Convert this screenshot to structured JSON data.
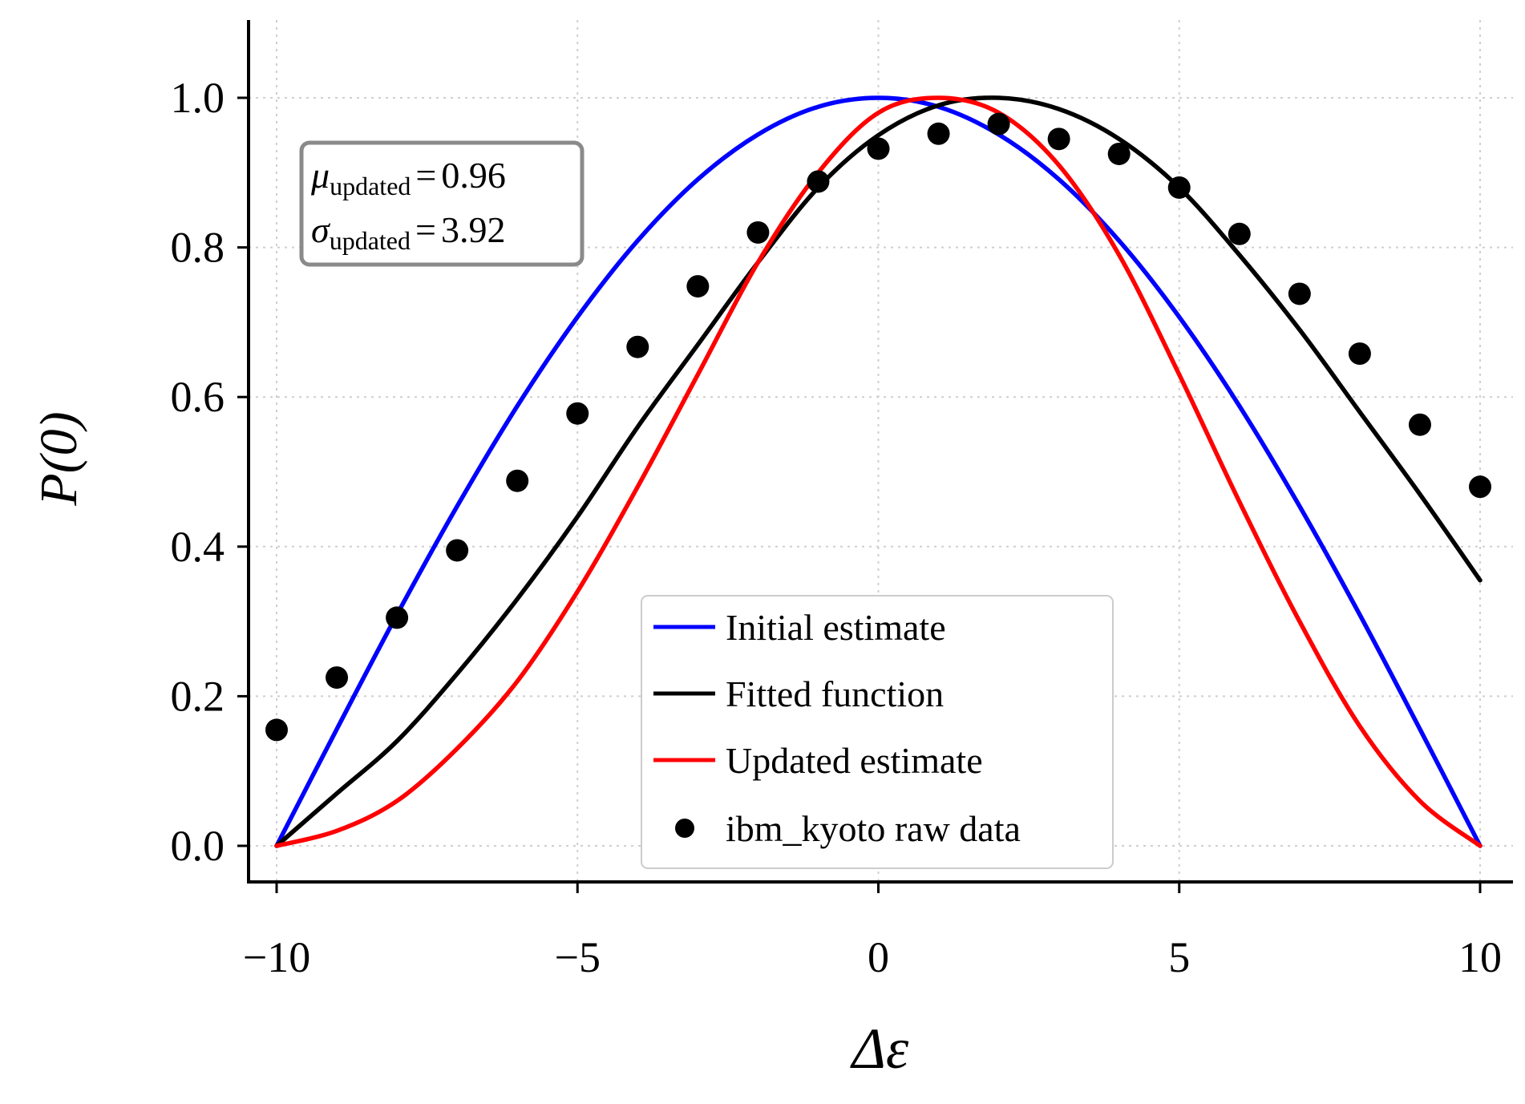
{
  "chart_data": {
    "type": "line",
    "title": "",
    "xlabel_symbol": "Δε",
    "ylabel_symbol": "P(0)",
    "xlim": [
      -10.5,
      10.5
    ],
    "ylim": [
      -0.05,
      1.1
    ],
    "xticks": [
      -10,
      -5,
      0,
      5,
      10
    ],
    "xtick_labels": [
      "−10",
      "−5",
      "0",
      "5",
      "10"
    ],
    "yticks": [
      0.0,
      0.2,
      0.4,
      0.6,
      0.8,
      1.0
    ],
    "ytick_labels": [
      "0.0",
      "0.2",
      "0.4",
      "0.6",
      "0.8",
      "1.0"
    ],
    "grid": true,
    "legend_position": "lower-center",
    "series": [
      {
        "name": "Initial estimate",
        "kind": "line",
        "color": "#0000ff",
        "x": [
          -10,
          -9,
          -8,
          -7,
          -6,
          -5,
          -4,
          -3,
          -2,
          -1,
          0,
          1,
          2,
          3,
          4,
          5,
          6,
          7,
          8,
          9,
          10
        ],
        "values": [
          0.0,
          0.156,
          0.309,
          0.454,
          0.588,
          0.707,
          0.809,
          0.891,
          0.951,
          0.988,
          1.0,
          0.988,
          0.951,
          0.891,
          0.809,
          0.707,
          0.588,
          0.454,
          0.309,
          0.156,
          0.0
        ]
      },
      {
        "name": "Fitted function",
        "kind": "line",
        "color": "#000000",
        "x": [
          -10,
          -9,
          -8,
          -7,
          -6,
          -5,
          -4,
          -3,
          -2,
          -1,
          0,
          1,
          2,
          3,
          4,
          5,
          6,
          7,
          8,
          9,
          10
        ],
        "values": [
          0.0,
          0.07,
          0.14,
          0.23,
          0.33,
          0.44,
          0.56,
          0.67,
          0.78,
          0.88,
          0.95,
          0.99,
          1.0,
          0.985,
          0.945,
          0.88,
          0.79,
          0.69,
          0.58,
          0.47,
          0.355
        ]
      },
      {
        "name": "Updated estimate",
        "kind": "line",
        "color": "#ff0000",
        "x": [
          -10,
          -9,
          -8,
          -7,
          -6,
          -5,
          -4,
          -3,
          -2,
          -1,
          0,
          1,
          2,
          3,
          4,
          5,
          6,
          7,
          8,
          9,
          10
        ],
        "values": [
          0.0,
          0.02,
          0.06,
          0.13,
          0.22,
          0.34,
          0.48,
          0.63,
          0.78,
          0.9,
          0.98,
          1.0,
          0.98,
          0.91,
          0.79,
          0.63,
          0.46,
          0.3,
          0.16,
          0.06,
          0.0
        ]
      },
      {
        "name": "ibm_kyoto raw data",
        "kind": "scatter",
        "color": "#000000",
        "x": [
          -10,
          -9,
          -8,
          -7,
          -6,
          -5,
          -4,
          -3,
          -2,
          -1,
          0,
          1,
          2,
          3,
          4,
          5,
          6,
          7,
          8,
          9,
          10
        ],
        "values": [
          0.155,
          0.225,
          0.305,
          0.395,
          0.488,
          0.578,
          0.667,
          0.748,
          0.82,
          0.888,
          0.932,
          0.952,
          0.965,
          0.945,
          0.925,
          0.88,
          0.818,
          0.738,
          0.658,
          0.563,
          0.48
        ]
      }
    ],
    "annotation": {
      "mu_symbol": "μ",
      "sigma_symbol": "σ",
      "subscript": "updated",
      "equals": "=",
      "mu_value": "0.96",
      "sigma_value": "3.92"
    }
  }
}
